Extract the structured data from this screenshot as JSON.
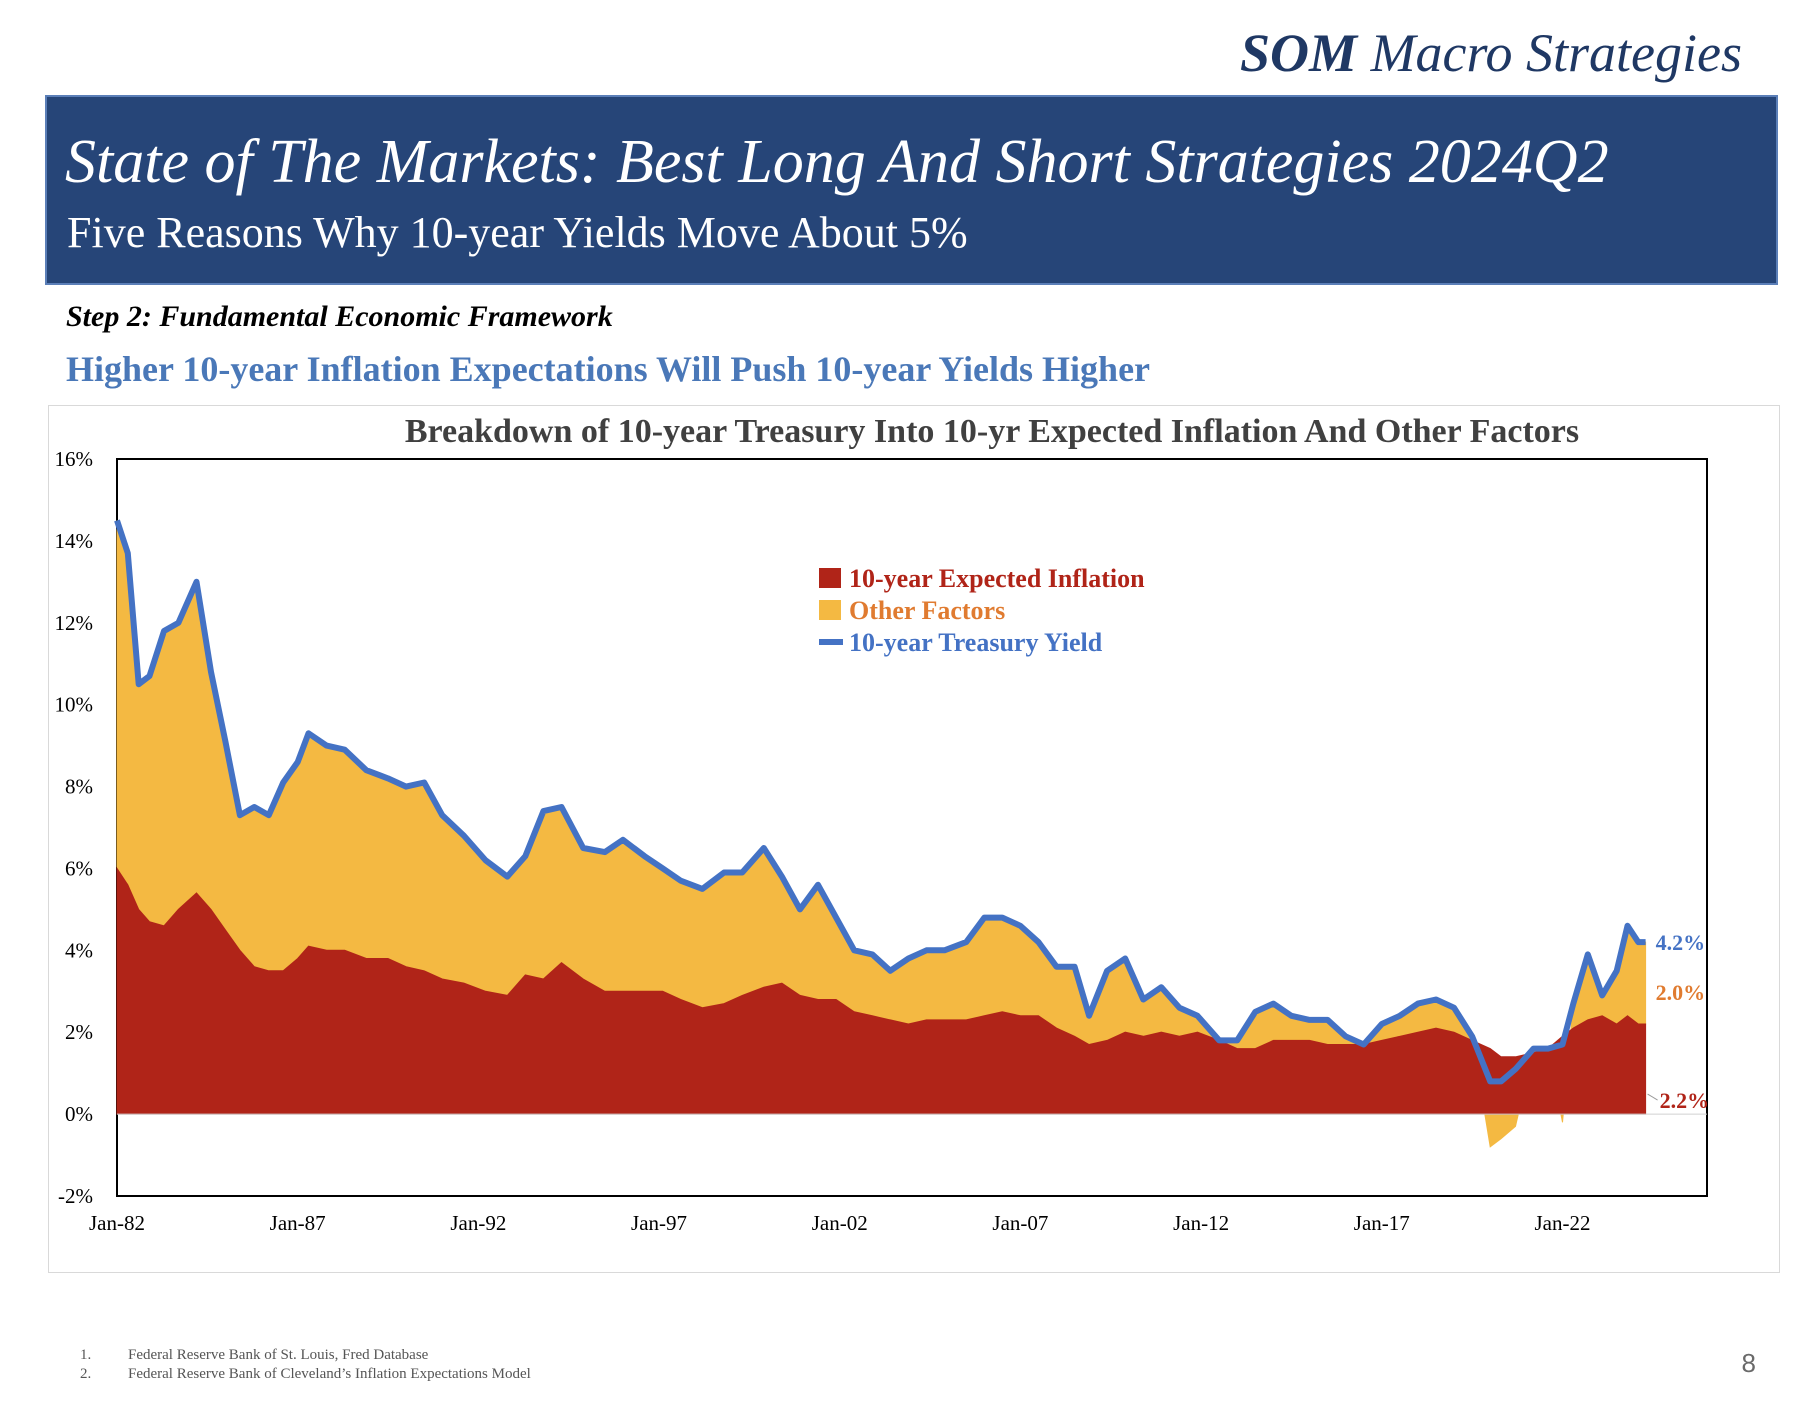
{
  "brand": {
    "bold": "SOM",
    "rest": "Macro Strategies"
  },
  "banner": {
    "title": "State of The Markets: Best Long And Short Strategies 2024Q2",
    "subtitle": "Five Reasons Why 10-year Yields Move About 5%"
  },
  "step": "Step 2: Fundamental Economic Framework",
  "headline": "Higher 10-year Inflation Expectations Will Push 10-year Yields Higher",
  "colors": {
    "inflation": "#b02418",
    "other": "#f4b942",
    "yield": "#4472c4",
    "title": "#404040"
  },
  "chart_data": {
    "type": "area",
    "title": "Breakdown of 10-year Treasury Into 10-yr Expected Inflation And Other Factors",
    "xlabel": "",
    "ylabel": "",
    "ylim": [
      -2,
      16
    ],
    "y_ticks": [
      "16%",
      "14%",
      "12%",
      "10%",
      "8%",
      "6%",
      "4%",
      "2%",
      "0%",
      "-2%"
    ],
    "x_ticks": [
      "Jan-82",
      "Jan-87",
      "Jan-92",
      "Jan-97",
      "Jan-02",
      "Jan-07",
      "Jan-12",
      "Jan-17",
      "Jan-22"
    ],
    "x_range": [
      1982.0,
      2026.0
    ],
    "legend_position": "top-center",
    "x": [
      1982.0,
      1982.3,
      1982.6,
      1982.9,
      1983.3,
      1983.7,
      1984.2,
      1984.6,
      1985.0,
      1985.4,
      1985.8,
      1986.2,
      1986.6,
      1987.0,
      1987.3,
      1987.8,
      1988.3,
      1988.9,
      1989.5,
      1990.0,
      1990.5,
      1991.0,
      1991.6,
      1992.2,
      1992.8,
      1993.3,
      1993.8,
      1994.3,
      1994.9,
      1995.5,
      1996.0,
      1996.6,
      1997.1,
      1997.6,
      1998.2,
      1998.8,
      1999.3,
      1999.9,
      2000.4,
      2000.9,
      2001.4,
      2001.9,
      2002.4,
      2002.9,
      2003.4,
      2003.9,
      2004.4,
      2004.9,
      2005.5,
      2006.0,
      2006.5,
      2007.0,
      2007.5,
      2008.0,
      2008.5,
      2008.9,
      2009.4,
      2009.9,
      2010.4,
      2010.9,
      2011.4,
      2011.9,
      2012.5,
      2013.0,
      2013.5,
      2014.0,
      2014.5,
      2015.0,
      2015.5,
      2016.0,
      2016.5,
      2017.0,
      2017.5,
      2018.0,
      2018.5,
      2019.0,
      2019.5,
      2020.0,
      2020.3,
      2020.7,
      2021.2,
      2021.6,
      2022.0,
      2022.3,
      2022.7,
      2023.1,
      2023.5,
      2023.8,
      2024.1,
      2024.3
    ],
    "series": [
      {
        "name": "10-year  Expected Inflation",
        "values": [
          6.0,
          5.6,
          5.0,
          4.7,
          4.6,
          5.0,
          5.4,
          5.0,
          4.5,
          4.0,
          3.6,
          3.5,
          3.5,
          3.8,
          4.1,
          4.0,
          4.0,
          3.8,
          3.8,
          3.6,
          3.5,
          3.3,
          3.2,
          3.0,
          2.9,
          3.4,
          3.3,
          3.7,
          3.3,
          3.0,
          3.0,
          3.0,
          3.0,
          2.8,
          2.6,
          2.7,
          2.9,
          3.1,
          3.2,
          2.9,
          2.8,
          2.8,
          2.5,
          2.4,
          2.3,
          2.2,
          2.3,
          2.3,
          2.3,
          2.4,
          2.5,
          2.4,
          2.4,
          2.1,
          1.9,
          1.7,
          1.8,
          2.0,
          1.9,
          2.0,
          1.9,
          2.0,
          1.8,
          1.6,
          1.6,
          1.8,
          1.8,
          1.8,
          1.7,
          1.7,
          1.7,
          1.8,
          1.9,
          2.0,
          2.1,
          2.0,
          1.8,
          1.6,
          1.4,
          1.4,
          1.5,
          1.6,
          1.9,
          2.1,
          2.3,
          2.4,
          2.2,
          2.4,
          2.2,
          2.2
        ]
      },
      {
        "name": "Other Factors",
        "values": [
          8.5,
          8.1,
          5.5,
          6.0,
          7.2,
          7.0,
          7.6,
          5.8,
          4.6,
          3.3,
          3.9,
          3.8,
          4.6,
          4.8,
          5.2,
          5.0,
          4.9,
          4.6,
          4.4,
          4.4,
          4.6,
          4.0,
          3.6,
          3.2,
          2.9,
          2.9,
          4.1,
          3.8,
          3.2,
          3.4,
          3.7,
          3.3,
          3.0,
          2.9,
          2.9,
          3.2,
          3.0,
          3.4,
          2.6,
          2.1,
          2.8,
          2.0,
          1.5,
          1.5,
          1.2,
          1.6,
          1.7,
          1.7,
          1.9,
          2.4,
          2.3,
          2.2,
          1.8,
          1.5,
          1.7,
          0.7,
          1.7,
          1.8,
          0.9,
          1.1,
          0.7,
          0.4,
          0.0,
          0.2,
          0.9,
          0.9,
          0.6,
          0.5,
          0.6,
          0.2,
          0.0,
          0.4,
          0.5,
          0.7,
          0.7,
          0.6,
          0.1,
          -0.8,
          -0.6,
          -0.3,
          0.1,
          0.0,
          -0.2,
          0.6,
          1.6,
          0.5,
          1.3,
          2.2,
          2.0,
          2.0
        ]
      },
      {
        "name": "10-year Treasury Yield",
        "values": [
          14.5,
          13.7,
          10.5,
          10.7,
          11.8,
          12.0,
          13.0,
          10.8,
          9.1,
          7.3,
          7.5,
          7.3,
          8.1,
          8.6,
          9.3,
          9.0,
          8.9,
          8.4,
          8.2,
          8.0,
          8.1,
          7.3,
          6.8,
          6.2,
          5.8,
          6.3,
          7.4,
          7.5,
          6.5,
          6.4,
          6.7,
          6.3,
          6.0,
          5.7,
          5.5,
          5.9,
          5.9,
          6.5,
          5.8,
          5.0,
          5.6,
          4.8,
          4.0,
          3.9,
          3.5,
          3.8,
          4.0,
          4.0,
          4.2,
          4.8,
          4.8,
          4.6,
          4.2,
          3.6,
          3.6,
          2.4,
          3.5,
          3.8,
          2.8,
          3.1,
          2.6,
          2.4,
          1.8,
          1.8,
          2.5,
          2.7,
          2.4,
          2.3,
          2.3,
          1.9,
          1.7,
          2.2,
          2.4,
          2.7,
          2.8,
          2.6,
          1.9,
          0.8,
          0.8,
          1.1,
          1.6,
          1.6,
          1.7,
          2.7,
          3.9,
          2.9,
          3.5,
          4.6,
          4.2,
          4.2
        ]
      }
    ],
    "end_labels": [
      {
        "series": "10-year Treasury Yield",
        "text": "4.2%"
      },
      {
        "series": "Other Factors",
        "text": "2.0%"
      },
      {
        "series": "10-year  Expected Inflation",
        "text": "2.2%"
      }
    ]
  },
  "footnotes": [
    {
      "num": "1.",
      "text": "Federal Reserve Bank of St. Louis, Fred Database"
    },
    {
      "num": "2.",
      "text": "Federal Reserve Bank of Cleveland’s Inflation Expectations Model"
    }
  ],
  "page_number": "8"
}
